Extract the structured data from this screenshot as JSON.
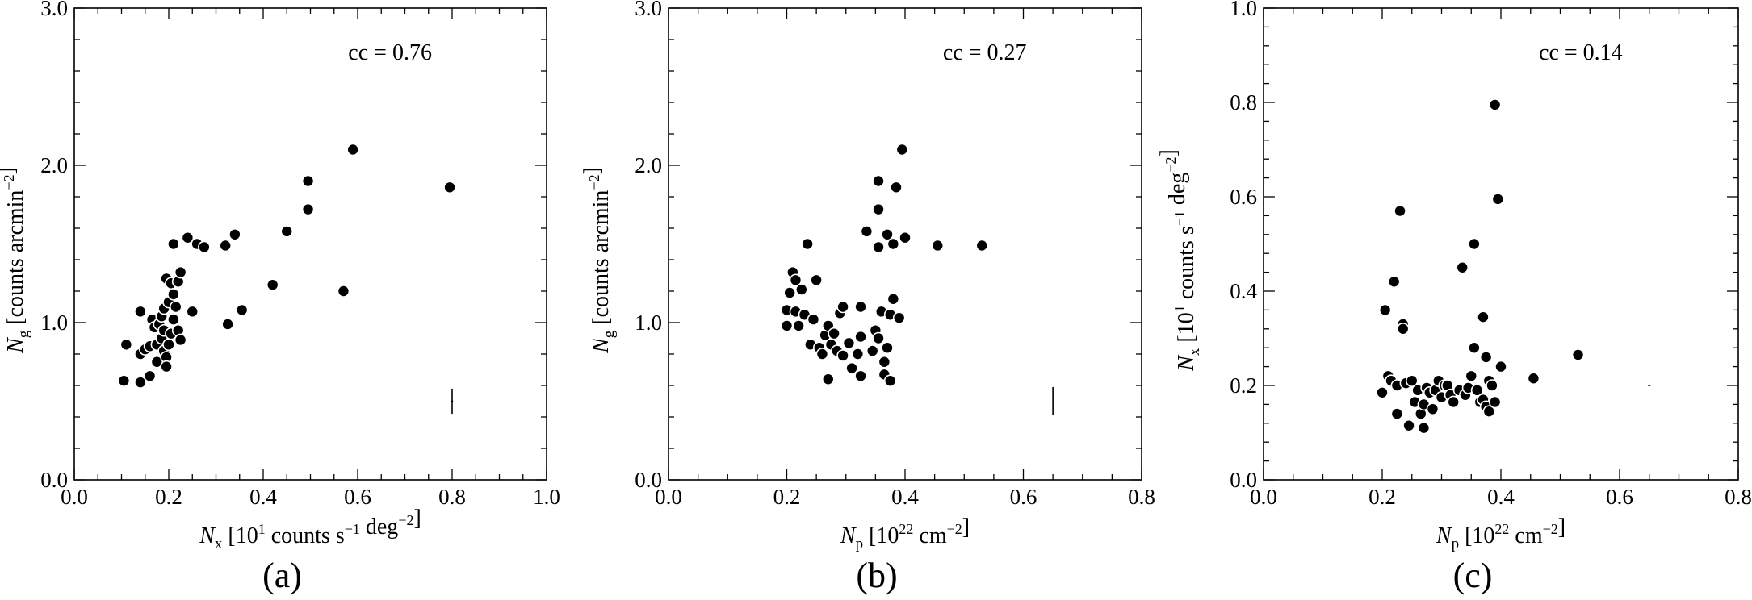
{
  "chart_data": [
    {
      "type": "scatter",
      "caption": "(a)",
      "annotation": "cc = 0.76",
      "xlabel": {
        "symbol": "N",
        "sub": "x",
        "pre": "[10",
        "sup1": "1",
        "mid": " counts s",
        "sup2": "−1",
        "mid2": " deg",
        "sup3": "−2",
        "post": "]"
      },
      "ylabel": {
        "symbol": "N",
        "sub": "g",
        "pre": "[counts arcmin",
        "sup1": "−2",
        "post": "]"
      },
      "xlim": [
        0.0,
        1.0
      ],
      "ylim": [
        0.0,
        3.0
      ],
      "xticks": [
        "0.0",
        "0.2",
        "0.4",
        "0.6",
        "0.8",
        "1.0"
      ],
      "xtick_values": [
        0.0,
        0.2,
        0.4,
        0.6,
        0.8,
        1.0
      ],
      "yticks": [
        "0.0",
        "1.0",
        "2.0",
        "3.0"
      ],
      "ytick_values": [
        0.0,
        1.0,
        2.0,
        3.0
      ],
      "errorbar": {
        "x": 0.8,
        "y": 0.5,
        "xerr": 0.002,
        "yerr": 0.08
      },
      "points": [
        {
          "x": 0.105,
          "y": 0.63
        },
        {
          "x": 0.11,
          "y": 0.86
        },
        {
          "x": 0.14,
          "y": 0.62
        },
        {
          "x": 0.14,
          "y": 1.07
        },
        {
          "x": 0.14,
          "y": 0.8
        },
        {
          "x": 0.15,
          "y": 0.83
        },
        {
          "x": 0.16,
          "y": 0.85
        },
        {
          "x": 0.16,
          "y": 0.66
        },
        {
          "x": 0.165,
          "y": 1.02
        },
        {
          "x": 0.17,
          "y": 0.97
        },
        {
          "x": 0.175,
          "y": 0.86
        },
        {
          "x": 0.175,
          "y": 0.75
        },
        {
          "x": 0.18,
          "y": 0.99
        },
        {
          "x": 0.185,
          "y": 0.9
        },
        {
          "x": 0.185,
          "y": 1.04
        },
        {
          "x": 0.19,
          "y": 0.82
        },
        {
          "x": 0.19,
          "y": 0.95
        },
        {
          "x": 0.19,
          "y": 1.09
        },
        {
          "x": 0.195,
          "y": 0.78
        },
        {
          "x": 0.195,
          "y": 0.72
        },
        {
          "x": 0.195,
          "y": 1.28
        },
        {
          "x": 0.2,
          "y": 1.13
        },
        {
          "x": 0.2,
          "y": 0.86
        },
        {
          "x": 0.205,
          "y": 1.25
        },
        {
          "x": 0.205,
          "y": 0.93
        },
        {
          "x": 0.21,
          "y": 1.02
        },
        {
          "x": 0.21,
          "y": 1.18
        },
        {
          "x": 0.21,
          "y": 1.5
        },
        {
          "x": 0.215,
          "y": 1.1
        },
        {
          "x": 0.22,
          "y": 0.95
        },
        {
          "x": 0.22,
          "y": 1.26
        },
        {
          "x": 0.225,
          "y": 1.32
        },
        {
          "x": 0.225,
          "y": 0.89
        },
        {
          "x": 0.24,
          "y": 1.54
        },
        {
          "x": 0.25,
          "y": 1.07
        },
        {
          "x": 0.26,
          "y": 1.5
        },
        {
          "x": 0.275,
          "y": 1.48
        },
        {
          "x": 0.32,
          "y": 1.49
        },
        {
          "x": 0.325,
          "y": 0.99
        },
        {
          "x": 0.34,
          "y": 1.56
        },
        {
          "x": 0.355,
          "y": 1.08
        },
        {
          "x": 0.42,
          "y": 1.24
        },
        {
          "x": 0.45,
          "y": 1.58
        },
        {
          "x": 0.495,
          "y": 1.72
        },
        {
          "x": 0.495,
          "y": 1.9
        },
        {
          "x": 0.57,
          "y": 1.2
        },
        {
          "x": 0.59,
          "y": 2.1
        },
        {
          "x": 0.795,
          "y": 1.86
        }
      ]
    },
    {
      "type": "scatter",
      "caption": "(b)",
      "annotation": "cc = 0.27",
      "xlabel": {
        "symbol": "N",
        "sub": "p",
        "pre": "[10",
        "sup1": "22",
        "mid": " cm",
        "sup2": "−2",
        "post": "]"
      },
      "ylabel": {
        "symbol": "N",
        "sub": "g",
        "pre": "[counts arcmin",
        "sup1": "−2",
        "post": "]"
      },
      "xlim": [
        0.0,
        0.8
      ],
      "ylim": [
        0.0,
        3.0
      ],
      "xticks": [
        "0.0",
        "0.2",
        "0.4",
        "0.6",
        "0.8"
      ],
      "xtick_values": [
        0.0,
        0.2,
        0.4,
        0.6,
        0.8
      ],
      "yticks": [
        "0.0",
        "1.0",
        "2.0",
        "3.0"
      ],
      "ytick_values": [
        0.0,
        1.0,
        2.0,
        3.0
      ],
      "errorbar": {
        "x": 0.65,
        "y": 0.5,
        "xerr": 0.0,
        "yerr": 0.09
      },
      "points": [
        {
          "x": 0.2,
          "y": 0.98
        },
        {
          "x": 0.2,
          "y": 1.08
        },
        {
          "x": 0.205,
          "y": 1.19
        },
        {
          "x": 0.21,
          "y": 1.32
        },
        {
          "x": 0.215,
          "y": 1.27
        },
        {
          "x": 0.215,
          "y": 1.07
        },
        {
          "x": 0.22,
          "y": 0.98
        },
        {
          "x": 0.225,
          "y": 1.21
        },
        {
          "x": 0.23,
          "y": 1.05
        },
        {
          "x": 0.235,
          "y": 1.5
        },
        {
          "x": 0.24,
          "y": 0.86
        },
        {
          "x": 0.245,
          "y": 1.02
        },
        {
          "x": 0.25,
          "y": 1.27
        },
        {
          "x": 0.255,
          "y": 0.84
        },
        {
          "x": 0.26,
          "y": 0.8
        },
        {
          "x": 0.265,
          "y": 0.92
        },
        {
          "x": 0.27,
          "y": 0.98
        },
        {
          "x": 0.27,
          "y": 0.64
        },
        {
          "x": 0.275,
          "y": 0.86
        },
        {
          "x": 0.28,
          "y": 0.93
        },
        {
          "x": 0.285,
          "y": 0.82
        },
        {
          "x": 0.29,
          "y": 1.06
        },
        {
          "x": 0.295,
          "y": 0.79
        },
        {
          "x": 0.295,
          "y": 1.1
        },
        {
          "x": 0.305,
          "y": 0.87
        },
        {
          "x": 0.31,
          "y": 0.71
        },
        {
          "x": 0.32,
          "y": 0.8
        },
        {
          "x": 0.325,
          "y": 0.66
        },
        {
          "x": 0.325,
          "y": 0.91
        },
        {
          "x": 0.325,
          "y": 1.1
        },
        {
          "x": 0.335,
          "y": 1.58
        },
        {
          "x": 0.345,
          "y": 0.82
        },
        {
          "x": 0.35,
          "y": 0.95
        },
        {
          "x": 0.355,
          "y": 0.9
        },
        {
          "x": 0.355,
          "y": 1.48
        },
        {
          "x": 0.355,
          "y": 1.72
        },
        {
          "x": 0.355,
          "y": 1.9
        },
        {
          "x": 0.36,
          "y": 1.07
        },
        {
          "x": 0.365,
          "y": 0.75
        },
        {
          "x": 0.365,
          "y": 0.67
        },
        {
          "x": 0.37,
          "y": 0.84
        },
        {
          "x": 0.37,
          "y": 1.56
        },
        {
          "x": 0.375,
          "y": 1.05
        },
        {
          "x": 0.375,
          "y": 0.63
        },
        {
          "x": 0.38,
          "y": 1.15
        },
        {
          "x": 0.38,
          "y": 1.5
        },
        {
          "x": 0.385,
          "y": 1.86
        },
        {
          "x": 0.39,
          "y": 1.03
        },
        {
          "x": 0.395,
          "y": 2.1
        },
        {
          "x": 0.4,
          "y": 1.54
        },
        {
          "x": 0.455,
          "y": 1.49
        },
        {
          "x": 0.53,
          "y": 1.49
        }
      ]
    },
    {
      "type": "scatter",
      "caption": "(c)",
      "annotation": "cc = 0.14",
      "xlabel": {
        "symbol": "N",
        "sub": "p",
        "pre": "[10",
        "sup1": "22",
        "mid": " cm",
        "sup2": "−2",
        "post": "]"
      },
      "ylabel": {
        "symbol": "N",
        "sub": "x",
        "pre": "[10",
        "sup1": "1",
        "mid": " counts s",
        "sup2": "−1",
        "mid2": " deg",
        "sup3": "−2",
        "post": "]"
      },
      "xlim": [
        0.0,
        0.8
      ],
      "ylim": [
        0.0,
        1.0
      ],
      "xticks": [
        "0.0",
        "0.2",
        "0.4",
        "0.6",
        "0.8"
      ],
      "xtick_values": [
        0.0,
        0.2,
        0.4,
        0.6,
        0.8
      ],
      "yticks": [
        "0.0",
        "0.2",
        "0.4",
        "0.6",
        "0.8",
        "1.0"
      ],
      "ytick_values": [
        0.0,
        0.2,
        0.4,
        0.6,
        0.8,
        1.0
      ],
      "errorbar": {
        "x": 0.65,
        "y": 0.2,
        "xerr": 0.002,
        "yerr": 0.0
      },
      "points": [
        {
          "x": 0.2,
          "y": 0.185
        },
        {
          "x": 0.205,
          "y": 0.36
        },
        {
          "x": 0.21,
          "y": 0.22
        },
        {
          "x": 0.215,
          "y": 0.21
        },
        {
          "x": 0.22,
          "y": 0.42
        },
        {
          "x": 0.225,
          "y": 0.14
        },
        {
          "x": 0.225,
          "y": 0.2
        },
        {
          "x": 0.23,
          "y": 0.57
        },
        {
          "x": 0.235,
          "y": 0.33
        },
        {
          "x": 0.235,
          "y": 0.32
        },
        {
          "x": 0.24,
          "y": 0.205
        },
        {
          "x": 0.245,
          "y": 0.115
        },
        {
          "x": 0.25,
          "y": 0.21
        },
        {
          "x": 0.255,
          "y": 0.165
        },
        {
          "x": 0.26,
          "y": 0.19
        },
        {
          "x": 0.265,
          "y": 0.14
        },
        {
          "x": 0.27,
          "y": 0.16
        },
        {
          "x": 0.27,
          "y": 0.11
        },
        {
          "x": 0.275,
          "y": 0.195
        },
        {
          "x": 0.28,
          "y": 0.185
        },
        {
          "x": 0.285,
          "y": 0.15
        },
        {
          "x": 0.29,
          "y": 0.19
        },
        {
          "x": 0.295,
          "y": 0.21
        },
        {
          "x": 0.3,
          "y": 0.175
        },
        {
          "x": 0.305,
          "y": 0.2
        },
        {
          "x": 0.31,
          "y": 0.2
        },
        {
          "x": 0.315,
          "y": 0.18
        },
        {
          "x": 0.32,
          "y": 0.165
        },
        {
          "x": 0.33,
          "y": 0.19
        },
        {
          "x": 0.335,
          "y": 0.45
        },
        {
          "x": 0.34,
          "y": 0.18
        },
        {
          "x": 0.345,
          "y": 0.195
        },
        {
          "x": 0.35,
          "y": 0.22
        },
        {
          "x": 0.355,
          "y": 0.28
        },
        {
          "x": 0.355,
          "y": 0.5
        },
        {
          "x": 0.36,
          "y": 0.19
        },
        {
          "x": 0.365,
          "y": 0.165
        },
        {
          "x": 0.37,
          "y": 0.17
        },
        {
          "x": 0.37,
          "y": 0.345
        },
        {
          "x": 0.375,
          "y": 0.26
        },
        {
          "x": 0.375,
          "y": 0.155
        },
        {
          "x": 0.38,
          "y": 0.21
        },
        {
          "x": 0.38,
          "y": 0.145
        },
        {
          "x": 0.385,
          "y": 0.2
        },
        {
          "x": 0.39,
          "y": 0.795
        },
        {
          "x": 0.39,
          "y": 0.165
        },
        {
          "x": 0.395,
          "y": 0.595
        },
        {
          "x": 0.4,
          "y": 0.24
        },
        {
          "x": 0.455,
          "y": 0.215
        },
        {
          "x": 0.53,
          "y": 0.265
        }
      ]
    }
  ]
}
